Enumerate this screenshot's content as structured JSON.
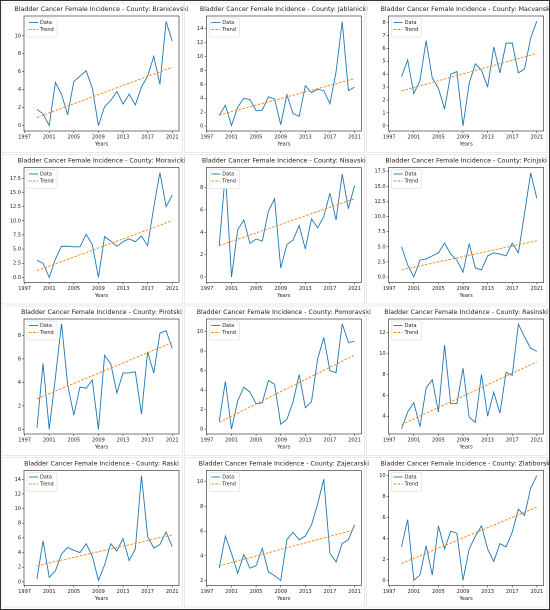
{
  "chart_data": [
    {
      "type": "line",
      "title": "Bladder Cancer Female Incidence - County: Branicevski",
      "x_label": "Years",
      "x": [
        1999,
        2000,
        2001,
        2002,
        2003,
        2004,
        2005,
        2006,
        2007,
        2008,
        2009,
        2010,
        2011,
        2012,
        2013,
        2014,
        2015,
        2016,
        2017,
        2018,
        2019,
        2020,
        2021
      ],
      "xlim": [
        1996.9,
        2022.1
      ],
      "xticks": [
        1997,
        2001,
        2005,
        2009,
        2013,
        2017,
        2021
      ],
      "ylim": [
        -0.6,
        12.2
      ],
      "yticks": [
        0,
        2,
        4,
        6,
        8,
        10
      ],
      "series": [
        {
          "name": "Data",
          "color": "#1f77b4",
          "values": [
            1.8,
            1.3,
            0,
            4.8,
            3.5,
            1.2,
            4.9,
            5.5,
            6.1,
            4.2,
            0,
            2.1,
            2.8,
            3.8,
            2.4,
            3.5,
            2.3,
            4.3,
            5.5,
            7.7,
            4.6,
            11.6,
            9.4
          ]
        },
        {
          "name": "Trend",
          "color": "#ff7f0e",
          "x": [
            1999,
            2021
          ],
          "values": [
            0.9,
            6.5
          ]
        }
      ]
    },
    {
      "type": "line",
      "title": "Bladder Cancer Female Incidence - County: Jablanicki",
      "x_label": "Years",
      "x": [
        1999,
        2000,
        2001,
        2002,
        2003,
        2004,
        2005,
        2006,
        2007,
        2008,
        2009,
        2010,
        2011,
        2012,
        2013,
        2014,
        2015,
        2016,
        2017,
        2018,
        2019,
        2020,
        2021
      ],
      "xlim": [
        1996.9,
        2022.1
      ],
      "xticks": [
        1997,
        2001,
        2005,
        2009,
        2013,
        2017,
        2021
      ],
      "ylim": [
        -0.7,
        15.8
      ],
      "yticks": [
        0,
        2,
        4,
        6,
        8,
        10,
        12,
        14
      ],
      "series": [
        {
          "name": "Data",
          "color": "#1f77b4",
          "values": [
            1.5,
            3,
            0.1,
            2.7,
            4,
            3.8,
            2.2,
            2.3,
            4.2,
            3.9,
            0.2,
            4.5,
            1.8,
            1.4,
            5.8,
            4.8,
            5.3,
            5.1,
            3.2,
            7.8,
            15,
            5.1,
            5.6
          ]
        },
        {
          "name": "Trend",
          "color": "#ff7f0e",
          "x": [
            1999,
            2021
          ],
          "values": [
            1.6,
            6.8
          ]
        }
      ]
    },
    {
      "type": "line",
      "title": "Bladder Cancer Female Incidence - County: Macvanski",
      "x_label": "Years",
      "x": [
        1999,
        2000,
        2001,
        2002,
        2003,
        2004,
        2005,
        2006,
        2007,
        2008,
        2009,
        2010,
        2011,
        2012,
        2013,
        2014,
        2015,
        2016,
        2017,
        2018,
        2019,
        2020,
        2021
      ],
      "xlim": [
        1996.9,
        2022.1
      ],
      "xticks": [
        1997,
        2001,
        2005,
        2009,
        2013,
        2017,
        2021
      ],
      "ylim": [
        -0.4,
        8.5
      ],
      "yticks": [
        0,
        1,
        2,
        3,
        4,
        5,
        6,
        7,
        8
      ],
      "series": [
        {
          "name": "Data",
          "color": "#1f77b4",
          "values": [
            3.8,
            5.1,
            2.5,
            3.5,
            6.6,
            3.7,
            2.9,
            1.3,
            4,
            4.2,
            0,
            3.3,
            4.8,
            4.3,
            3,
            6.1,
            4.1,
            6.4,
            6.4,
            4.1,
            4.4,
            6.8,
            8.1
          ]
        },
        {
          "name": "Trend",
          "color": "#ff7f0e",
          "x": [
            1999,
            2021
          ],
          "values": [
            2.7,
            5.6
          ]
        }
      ]
    },
    {
      "type": "line",
      "title": "Bladder Cancer Female Incidence - County: Moravicki",
      "x_label": "Years",
      "x": [
        1999,
        2000,
        2001,
        2002,
        2003,
        2004,
        2005,
        2006,
        2007,
        2008,
        2009,
        2010,
        2011,
        2012,
        2013,
        2014,
        2015,
        2016,
        2017,
        2018,
        2019,
        2020,
        2021
      ],
      "xlim": [
        1996.9,
        2022.1
      ],
      "xticks": [
        1997,
        2001,
        2005,
        2009,
        2013,
        2017,
        2021
      ],
      "ylim": [
        -0.9,
        19.4
      ],
      "yticks": [
        {
          "value": 0,
          "label": "0.0"
        },
        2.5,
        {
          "value": 5,
          "label": "5.0"
        },
        7.5,
        {
          "value": 10,
          "label": "10.0"
        },
        12.5,
        {
          "value": 15,
          "label": "15.0"
        },
        17.5
      ],
      "series": [
        {
          "name": "Data",
          "color": "#1f77b4",
          "values": [
            3,
            2.5,
            0,
            3.2,
            5.5,
            5.5,
            5.4,
            5.4,
            7.6,
            5.8,
            0,
            7.2,
            6.4,
            5.5,
            6.3,
            6.8,
            6.3,
            7.3,
            5.6,
            12.4,
            18.5,
            12.5,
            14.5
          ]
        },
        {
          "name": "Trend",
          "color": "#ff7f0e",
          "x": [
            1999,
            2021
          ],
          "values": [
            1.2,
            10
          ]
        }
      ]
    },
    {
      "type": "line",
      "title": "Bladder Cancer Female Incidence - County: Nisavski",
      "x_label": "Years",
      "x": [
        1999,
        2000,
        2001,
        2002,
        2003,
        2004,
        2005,
        2006,
        2007,
        2008,
        2009,
        2010,
        2011,
        2012,
        2013,
        2014,
        2015,
        2016,
        2017,
        2018,
        2019,
        2020,
        2021
      ],
      "xlim": [
        1996.9,
        2022.1
      ],
      "xticks": [
        1997,
        2001,
        2005,
        2009,
        2013,
        2017,
        2021
      ],
      "ylim": [
        -0.5,
        9.8
      ],
      "yticks": [
        0,
        2,
        4,
        6,
        8
      ],
      "series": [
        {
          "name": "Data",
          "color": "#1f77b4",
          "values": [
            2.8,
            9.3,
            0,
            4.2,
            5.1,
            3,
            3.4,
            3.2,
            5.9,
            7,
            0.8,
            2.9,
            3.3,
            4.6,
            2.5,
            5.2,
            4.4,
            5.4,
            7.5,
            5.1,
            9.2,
            6.1,
            8.2
          ]
        },
        {
          "name": "Trend",
          "color": "#ff7f0e",
          "x": [
            1999,
            2021
          ],
          "values": [
            2.8,
            7
          ]
        }
      ]
    },
    {
      "type": "line",
      "title": "Bladder Cancer Female Incidence - County: Pcinjski",
      "x_label": "Years",
      "x": [
        1999,
        2000,
        2001,
        2002,
        2003,
        2004,
        2005,
        2006,
        2007,
        2008,
        2009,
        2010,
        2011,
        2012,
        2013,
        2014,
        2015,
        2016,
        2017,
        2018,
        2019,
        2020,
        2021
      ],
      "xlim": [
        1996.9,
        2022.1
      ],
      "xticks": [
        1997,
        2001,
        2005,
        2009,
        2013,
        2017,
        2021
      ],
      "ylim": [
        -0.9,
        18.1
      ],
      "yticks": [
        {
          "value": 0,
          "label": "0.0"
        },
        2.5,
        {
          "value": 5,
          "label": "5.0"
        },
        7.5,
        {
          "value": 10,
          "label": "10.0"
        },
        12.5,
        {
          "value": 15,
          "label": "15.0"
        },
        17.5
      ],
      "series": [
        {
          "name": "Data",
          "color": "#1f77b4",
          "values": [
            5,
            2,
            0,
            2.8,
            3,
            3.5,
            4,
            5.6,
            3.8,
            2.8,
            0.8,
            5.5,
            1.5,
            1.2,
            3.5,
            4,
            3.8,
            3.5,
            5.6,
            4,
            10.5,
            17.2,
            13
          ]
        },
        {
          "name": "Trend",
          "color": "#ff7f0e",
          "x": [
            1999,
            2021
          ],
          "values": [
            1.2,
            6
          ]
        }
      ]
    },
    {
      "type": "line",
      "title": "Bladder Cancer Female Incidence - County: Pirotski",
      "x_label": "Years",
      "x": [
        1999,
        2000,
        2001,
        2002,
        2003,
        2004,
        2005,
        2006,
        2007,
        2008,
        2009,
        2010,
        2011,
        2012,
        2013,
        2014,
        2015,
        2016,
        2017,
        2018,
        2019,
        2020,
        2021
      ],
      "xlim": [
        1996.9,
        2022.1
      ],
      "xticks": [
        1997,
        2001,
        2005,
        2009,
        2013,
        2017,
        2021
      ],
      "ylim": [
        -0.4,
        9.4
      ],
      "yticks": [
        0,
        2,
        4,
        6,
        8
      ],
      "series": [
        {
          "name": "Data",
          "color": "#1f77b4",
          "values": [
            0.1,
            5.6,
            0,
            4.4,
            9,
            3.8,
            1.2,
            3.6,
            3.5,
            4.2,
            0,
            6.3,
            5.6,
            3.1,
            4.8,
            4.8,
            4.9,
            1.3,
            6.6,
            4.8,
            8.2,
            8.4,
            6.9
          ]
        },
        {
          "name": "Trend",
          "color": "#ff7f0e",
          "x": [
            1999,
            2021
          ],
          "values": [
            2.6,
            7.4
          ]
        }
      ]
    },
    {
      "type": "line",
      "title": "Bladder Cancer Female Incidence - County: Pomoravski",
      "x_label": "Years",
      "x": [
        1999,
        2000,
        2001,
        2002,
        2003,
        2004,
        2005,
        2006,
        2007,
        2008,
        2009,
        2010,
        2011,
        2012,
        2013,
        2014,
        2015,
        2016,
        2017,
        2018,
        2019,
        2020,
        2021
      ],
      "xlim": [
        1996.9,
        2022.1
      ],
      "xticks": [
        1997,
        2001,
        2005,
        2009,
        2013,
        2017,
        2021
      ],
      "ylim": [
        -0.5,
        11.3
      ],
      "yticks": [
        0,
        2,
        4,
        6,
        8,
        10
      ],
      "series": [
        {
          "name": "Data",
          "color": "#1f77b4",
          "values": [
            0.8,
            4.9,
            0,
            2.9,
            4.3,
            3.8,
            2.6,
            2.7,
            5,
            4.6,
            0.5,
            1,
            2.8,
            5.6,
            2.2,
            2.8,
            7.2,
            9.4,
            6,
            5.8,
            10.8,
            8.9,
            9
          ]
        },
        {
          "name": "Trend",
          "color": "#ff7f0e",
          "x": [
            1999,
            2021
          ],
          "values": [
            0.7,
            7.6
          ]
        }
      ]
    },
    {
      "type": "line",
      "title": "Bladder Cancer Female Incidence - County: Rasinski",
      "x_label": "Years",
      "x": [
        1999,
        2000,
        2001,
        2002,
        2003,
        2004,
        2005,
        2006,
        2007,
        2008,
        2009,
        2010,
        2011,
        2012,
        2013,
        2014,
        2015,
        2016,
        2017,
        2018,
        2019,
        2020,
        2021
      ],
      "xlim": [
        1996.9,
        2022.1
      ],
      "xticks": [
        1997,
        2001,
        2005,
        2009,
        2013,
        2017,
        2021
      ],
      "ylim": [
        2.3,
        13.3
      ],
      "yticks": [
        4,
        6,
        8,
        10,
        12
      ],
      "series": [
        {
          "name": "Data",
          "color": "#1f77b4",
          "values": [
            2.8,
            4.4,
            5.3,
            3,
            6.7,
            7.5,
            4.4,
            10.8,
            5.2,
            5.2,
            8.6,
            3.9,
            3.4,
            8,
            4,
            6.3,
            4.3,
            8.2,
            7.9,
            12.8,
            11.6,
            10.5,
            10.2
          ]
        },
        {
          "name": "Trend",
          "color": "#ff7f0e",
          "x": [
            1999,
            2021
          ],
          "values": [
            3.2,
            9.2
          ]
        }
      ]
    },
    {
      "type": "line",
      "title": "Bladder Cancer Female Incidence - County: Raski",
      "x_label": "Years",
      "x": [
        1999,
        2000,
        2001,
        2002,
        2003,
        2004,
        2005,
        2006,
        2007,
        2008,
        2009,
        2010,
        2011,
        2012,
        2013,
        2014,
        2015,
        2016,
        2017,
        2018,
        2019,
        2020,
        2021
      ],
      "xlim": [
        1996.9,
        2022.1
      ],
      "xticks": [
        1997,
        2001,
        2005,
        2009,
        2013,
        2017,
        2021
      ],
      "ylim": [
        -0.5,
        15.2
      ],
      "yticks": [
        0,
        2,
        4,
        6,
        8,
        10,
        12,
        14
      ],
      "series": [
        {
          "name": "Data",
          "color": "#1f77b4",
          "values": [
            0.4,
            5.6,
            0.6,
            1.5,
            3.8,
            4.7,
            4.3,
            4,
            5.2,
            3.5,
            0.2,
            2.3,
            5.2,
            4.2,
            5.9,
            2.9,
            4.5,
            14.5,
            6.2,
            4.6,
            5.1,
            6.8,
            4.8
          ]
        },
        {
          "name": "Trend",
          "color": "#ff7f0e",
          "x": [
            1999,
            2021
          ],
          "values": [
            2.2,
            6.4
          ]
        }
      ]
    },
    {
      "type": "line",
      "title": "Bladder Cancer Female Incidence - County: Zajecarski",
      "x_label": "Years",
      "x": [
        1999,
        2000,
        2001,
        2002,
        2003,
        2004,
        2005,
        2006,
        2007,
        2008,
        2009,
        2010,
        2011,
        2012,
        2013,
        2014,
        2015,
        2016,
        2017,
        2018,
        2019,
        2020,
        2021
      ],
      "xlim": [
        1996.9,
        2022.1
      ],
      "xticks": [
        1997,
        2001,
        2005,
        2009,
        2013,
        2017,
        2021
      ],
      "ylim": [
        1.6,
        10.9
      ],
      "yticks": [
        2,
        4,
        6,
        8,
        10
      ],
      "series": [
        {
          "name": "Data",
          "color": "#1f77b4",
          "values": [
            3,
            5.6,
            4.2,
            2.6,
            4.1,
            3,
            3.2,
            4.6,
            2.7,
            2.4,
            2,
            5.3,
            5.9,
            5.3,
            5.6,
            6.5,
            8.2,
            10.2,
            4.2,
            3.5,
            5,
            5.3,
            6.5
          ]
        },
        {
          "name": "Trend",
          "color": "#ff7f0e",
          "x": [
            1999,
            2021
          ],
          "values": [
            3.2,
            6.1
          ]
        }
      ]
    },
    {
      "type": "line",
      "title": "Bladder Cancer Female Incidence - County: Zlatiborski",
      "x_label": "Years",
      "x": [
        1999,
        2000,
        2001,
        2002,
        2003,
        2004,
        2005,
        2006,
        2007,
        2008,
        2009,
        2010,
        2011,
        2012,
        2013,
        2014,
        2015,
        2016,
        2017,
        2018,
        2019,
        2020,
        2021
      ],
      "xlim": [
        1996.9,
        2022.1
      ],
      "xticks": [
        1997,
        2001,
        2005,
        2009,
        2013,
        2017,
        2021
      ],
      "ylim": [
        -0.5,
        10.5
      ],
      "yticks": [
        0,
        2,
        4,
        6,
        8,
        10
      ],
      "series": [
        {
          "name": "Data",
          "color": "#1f77b4",
          "values": [
            3.2,
            5.8,
            0,
            0.5,
            3.3,
            0.5,
            5.2,
            3,
            4.7,
            4.5,
            0,
            3,
            4.2,
            5.2,
            3,
            1.8,
            3.5,
            3.2,
            4.6,
            6.8,
            6.2,
            8.8,
            10
          ]
        },
        {
          "name": "Trend",
          "color": "#ff7f0e",
          "x": [
            1999,
            2021
          ],
          "values": [
            1.6,
            7
          ]
        }
      ]
    }
  ]
}
